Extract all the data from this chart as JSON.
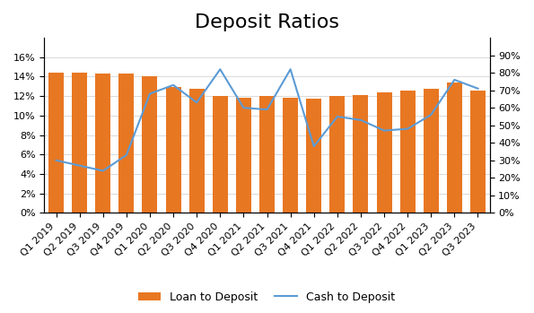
{
  "title": "Deposit Ratios",
  "categories": [
    "Q1 2019",
    "Q2 2019",
    "Q3 2019",
    "Q4 2019",
    "Q1 2020",
    "Q2 2020",
    "Q3 2020",
    "Q4 2020",
    "Q1 2021",
    "Q2 2021",
    "Q3 2021",
    "Q4 2021",
    "Q1 2022",
    "Q2 2022",
    "Q3 2022",
    "Q4 2022",
    "Q1 2023",
    "Q2 2023",
    "Q3 2023"
  ],
  "loan_to_deposit": [
    0.144,
    0.144,
    0.143,
    0.143,
    0.14,
    0.129,
    0.128,
    0.12,
    0.118,
    0.12,
    0.118,
    0.117,
    0.12,
    0.121,
    0.124,
    0.126,
    0.128,
    0.134,
    0.126
  ],
  "cash_to_deposit": [
    0.3,
    0.27,
    0.24,
    0.33,
    0.68,
    0.73,
    0.63,
    0.82,
    0.6,
    0.59,
    0.82,
    0.38,
    0.55,
    0.53,
    0.47,
    0.48,
    0.56,
    0.76,
    0.71
  ],
  "bar_color": "#E87722",
  "line_color": "#5B9BD5",
  "left_ylim": [
    0,
    0.18
  ],
  "right_ylim": [
    0,
    1.0
  ],
  "left_yticks": [
    0,
    0.02,
    0.04,
    0.06,
    0.08,
    0.1,
    0.12,
    0.14,
    0.16
  ],
  "right_yticks": [
    0,
    0.1,
    0.2,
    0.3,
    0.4,
    0.5,
    0.6,
    0.7,
    0.8,
    0.9
  ],
  "right_ytick_labels": [
    "0%",
    "10%",
    "20%",
    "30%",
    "40%",
    "50%",
    "60%",
    "70%",
    "80%",
    "90%"
  ],
  "title_fontsize": 16,
  "legend_fontsize": 9,
  "tick_fontsize": 8
}
